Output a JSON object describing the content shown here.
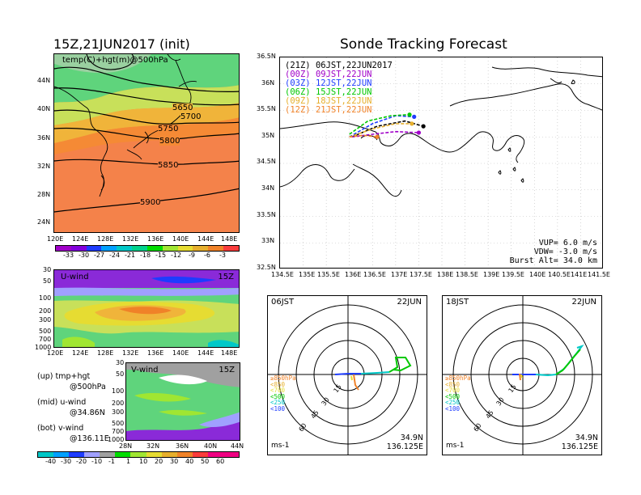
{
  "left": {
    "title": "15Z,21JUN2017 (init)",
    "map_label": "temp(C)+hgt(m)@500hPa",
    "map_lat_ticks": [
      "44N",
      "40N",
      "36N",
      "32N",
      "28N",
      "24N"
    ],
    "map_lon_ticks": [
      "120E",
      "124E",
      "128E",
      "132E",
      "136E",
      "140E",
      "144E",
      "148E"
    ],
    "contour_labels": [
      "5650",
      "5700",
      "5750",
      "5800",
      "5850",
      "5900"
    ],
    "temp_colorbar": {
      "labels": [
        "-33",
        "-30",
        "-27",
        "-24",
        "-21",
        "-18",
        "-15",
        "-12",
        "-9",
        "-6",
        "-3"
      ],
      "colors": [
        "#a000c8",
        "#8200dc",
        "#1e3cff",
        "#00a0ff",
        "#00c8c8",
        "#00d28c",
        "#00dc00",
        "#a0e632",
        "#e6dc32",
        "#e6af2d",
        "#f08228",
        "#fa3c3c"
      ]
    },
    "uwind": {
      "label": "U-wind",
      "time": "15Z",
      "y_ticks": [
        "30",
        "50",
        "100",
        "200",
        "300",
        "500",
        "700",
        "1000"
      ],
      "x_ticks": [
        "120E",
        "124E",
        "128E",
        "132E",
        "136E",
        "140E",
        "144E",
        "148E"
      ]
    },
    "vwind": {
      "label": "V-wind",
      "time": "15Z",
      "y_ticks": [
        "30",
        "50",
        "100",
        "200",
        "300",
        "500",
        "700",
        "1000"
      ],
      "x_ticks": [
        "28N",
        "32N",
        "36N",
        "40N",
        "44N"
      ]
    },
    "legend_lines": [
      {
        "a": "(up) tmp+hgt",
        "b": "@500hPa"
      },
      {
        "a": "(mid) u-wind",
        "b": "@34.86N"
      },
      {
        "a": "(bot) v-wind",
        "b": "@136.11E"
      }
    ],
    "wind_colorbar": {
      "labels": [
        "-40",
        "-30",
        "-20",
        "-10",
        "-1",
        "1",
        "10",
        "20",
        "30",
        "40",
        "50",
        "60"
      ],
      "colors": [
        "#00c8c8",
        "#00a0ff",
        "#1e3cff",
        "#a0a0ff",
        "#a0a0a0",
        "#00dc00",
        "#a0e632",
        "#e6dc32",
        "#e6af2d",
        "#f08228",
        "#fa3c3c",
        "#f00082"
      ]
    }
  },
  "right": {
    "title": "Sonde Tracking Forecast",
    "lat_ticks": [
      "36.5N",
      "36N",
      "35.5N",
      "35N",
      "34.5N",
      "34N",
      "33.5N",
      "33N",
      "32.5N"
    ],
    "lon_ticks": [
      "134.5E",
      "135E",
      "135.5E",
      "136E",
      "136.5E",
      "137E",
      "137.5E",
      "138E",
      "138.5E",
      "139E",
      "139.5E",
      "140E",
      "140.5E",
      "141E",
      "141.5E"
    ],
    "launches": [
      {
        "code": "(21Z)",
        "text": "06JST,22JUN2017",
        "color": "#000000"
      },
      {
        "code": "(00Z)",
        "text": "09JST,22JUN",
        "color": "#a000c8"
      },
      {
        "code": "(03Z)",
        "text": "12JST,22JUN",
        "color": "#1e3cff"
      },
      {
        "code": "(06Z)",
        "text": "15JST,22JUN",
        "color": "#00c800"
      },
      {
        "code": "(09Z)",
        "text": "18JST,22JUN",
        "color": "#e6af2d"
      },
      {
        "code": "(12Z)",
        "text": "21JST,22JUN",
        "color": "#f08228"
      }
    ],
    "stats": [
      {
        "label": "VUP=",
        "value": "6.0",
        "unit": "m/s"
      },
      {
        "label": "VDW=",
        "value": "-3.0",
        "unit": "m/s"
      },
      {
        "label": "Burst Alt=",
        "value": "34.0",
        "unit": "km"
      }
    ]
  },
  "hodographs": [
    {
      "time": "06JST",
      "date": "22JUN",
      "ring_labels": [
        "15",
        "30",
        "45",
        "60"
      ],
      "levels": [
        "≥850hPa",
        "<850",
        "<700",
        "<500",
        "<250",
        "<100"
      ],
      "level_colors": [
        "#f08228",
        "#e6af2d",
        "#e6dc32",
        "#00c800",
        "#00c8c8",
        "#1e3cff"
      ],
      "unit": "ms-1",
      "lat": "34.9N",
      "lon": "136.125E"
    },
    {
      "time": "18JST",
      "date": "22JUN",
      "ring_labels": [
        "15",
        "30",
        "45",
        "60"
      ],
      "levels": [
        "≥850hPa",
        "<850",
        "<700",
        "<500",
        "<250",
        "<100"
      ],
      "level_colors": [
        "#f08228",
        "#e6af2d",
        "#e6dc32",
        "#00c800",
        "#00c8c8",
        "#1e3cff"
      ],
      "unit": "ms-1",
      "lat": "34.9N",
      "lon": "136.125E"
    }
  ],
  "chart_data": [
    {
      "type": "heatmap",
      "title": "15Z,21JUN2017 (init)",
      "subtitle": "temp(C)+hgt(m)@500hPa",
      "xlabel": "",
      "ylabel": "",
      "xlim": [
        120,
        150
      ],
      "ylim": [
        22,
        47
      ],
      "contours_m": [
        5650,
        5700,
        5750,
        5800,
        5850,
        5900
      ],
      "colorbar_C": [
        -33,
        -30,
        -27,
        -24,
        -21,
        -18,
        -15,
        -12,
        -9,
        -6,
        -3
      ]
    },
    {
      "type": "heatmap",
      "title": "U-wind",
      "xlim": [
        120,
        150
      ],
      "ylevels_hPa": [
        30,
        50,
        100,
        200,
        300,
        500,
        700,
        1000
      ],
      "colorbar_ms": [
        -40,
        -30,
        -20,
        -10,
        -1,
        1,
        10,
        20,
        30,
        40,
        50,
        60
      ]
    },
    {
      "type": "heatmap",
      "title": "V-wind",
      "xlim": [
        28,
        44
      ],
      "ylevels_hPa": [
        30,
        50,
        100,
        200,
        300,
        500,
        700,
        1000
      ]
    },
    {
      "type": "line",
      "title": "Sonde Tracking Forecast",
      "xlim": [
        134.5,
        141.5
      ],
      "ylim": [
        32.5,
        36.5
      ],
      "series": [
        {
          "name": "(21Z) 06JST,22JUN2017",
          "x": [
            136.05,
            136.6,
            137.2,
            137.6
          ],
          "y": [
            35.0,
            35.2,
            35.3,
            35.2
          ]
        },
        {
          "name": "(00Z) 09JST,22JUN",
          "x": [
            136.05,
            136.5,
            137.0,
            137.5
          ],
          "y": [
            35.0,
            35.05,
            35.1,
            35.08
          ]
        },
        {
          "name": "(03Z) 12JST,22JUN",
          "x": [
            136.0,
            136.5,
            137.0,
            137.4
          ],
          "y": [
            35.0,
            35.25,
            35.4,
            35.38
          ]
        },
        {
          "name": "(06Z) 15JST,22JUN",
          "x": [
            136.0,
            136.4,
            136.9,
            137.3
          ],
          "y": [
            35.05,
            35.3,
            35.4,
            35.42
          ]
        },
        {
          "name": "(09Z) 18JST,22JUN",
          "x": [
            136.0,
            136.5,
            137.0,
            137.35
          ],
          "y": [
            35.0,
            35.15,
            35.25,
            35.25
          ]
        },
        {
          "name": "(12Z) 21JST,22JUN",
          "x": [
            136.0,
            136.3,
            136.6
          ],
          "y": [
            35.0,
            35.03,
            35.0
          ]
        }
      ]
    }
  ]
}
